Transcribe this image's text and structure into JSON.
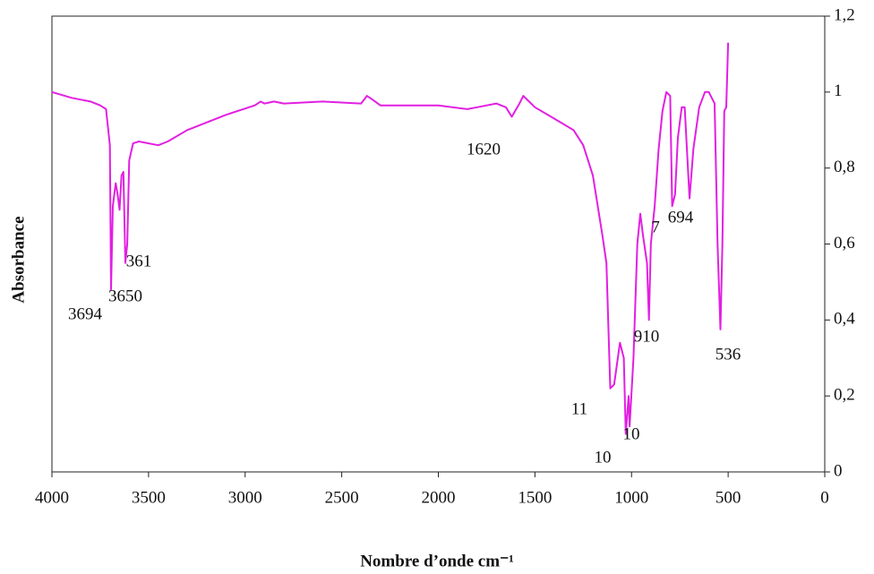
{
  "chart_data": {
    "type": "line",
    "x_label": "Nombre d’onde cm⁻¹",
    "y_label": "Absorbance",
    "color": "#e21fe2",
    "grid": false,
    "xlim": [
      4000,
      0
    ],
    "xticks": [
      4000,
      3500,
      3000,
      2500,
      2000,
      1500,
      1000,
      500,
      0
    ],
    "ylim": [
      0,
      1.2
    ],
    "yticks": [
      0,
      {
        "value": 0.2,
        "label": "0,2"
      },
      {
        "value": 0.4,
        "label": "0,4"
      },
      {
        "value": 0.6,
        "label": "0,6"
      },
      {
        "value": 0.8,
        "label": "0,8"
      },
      1,
      {
        "value": 1.2,
        "label": "1,2"
      }
    ],
    "x": [
      4000,
      3900,
      3850,
      3800,
      3750,
      3720,
      3700,
      3694,
      3685,
      3670,
      3660,
      3650,
      3640,
      3630,
      3620,
      3610,
      3600,
      3580,
      3550,
      3450,
      3400,
      3300,
      3100,
      2950,
      2920,
      2900,
      2850,
      2800,
      2600,
      2400,
      2370,
      2340,
      2300,
      2000,
      1850,
      1800,
      1700,
      1650,
      1620,
      1580,
      1560,
      1500,
      1400,
      1300,
      1250,
      1200,
      1150,
      1130,
      1110,
      1090,
      1060,
      1040,
      1030,
      1015,
      1010,
      990,
      970,
      955,
      940,
      920,
      910,
      900,
      880,
      860,
      840,
      820,
      800,
      790,
      775,
      760,
      740,
      725,
      700,
      680,
      650,
      620,
      600,
      570,
      555,
      540,
      530,
      520,
      510,
      500
    ],
    "values": [
      1.0,
      0.985,
      0.98,
      0.975,
      0.965,
      0.955,
      0.86,
      0.48,
      0.7,
      0.76,
      0.73,
      0.69,
      0.78,
      0.79,
      0.55,
      0.6,
      0.82,
      0.865,
      0.87,
      0.86,
      0.87,
      0.9,
      0.94,
      0.965,
      0.975,
      0.97,
      0.975,
      0.97,
      0.975,
      0.97,
      0.99,
      0.98,
      0.965,
      0.965,
      0.955,
      0.96,
      0.97,
      0.96,
      0.935,
      0.97,
      0.99,
      0.96,
      0.93,
      0.9,
      0.86,
      0.78,
      0.62,
      0.55,
      0.22,
      0.23,
      0.34,
      0.3,
      0.1,
      0.2,
      0.12,
      0.3,
      0.6,
      0.68,
      0.62,
      0.55,
      0.4,
      0.6,
      0.7,
      0.85,
      0.95,
      1.0,
      0.99,
      0.7,
      0.73,
      0.88,
      0.96,
      0.96,
      0.72,
      0.85,
      0.96,
      1.0,
      1.0,
      0.97,
      0.6,
      0.375,
      0.6,
      0.95,
      0.96,
      1.13
    ],
    "annotations": [
      "3694",
      "3650",
      "361",
      "1620",
      "11",
      "10",
      "10",
      "910",
      "7",
      "694",
      "536"
    ]
  }
}
